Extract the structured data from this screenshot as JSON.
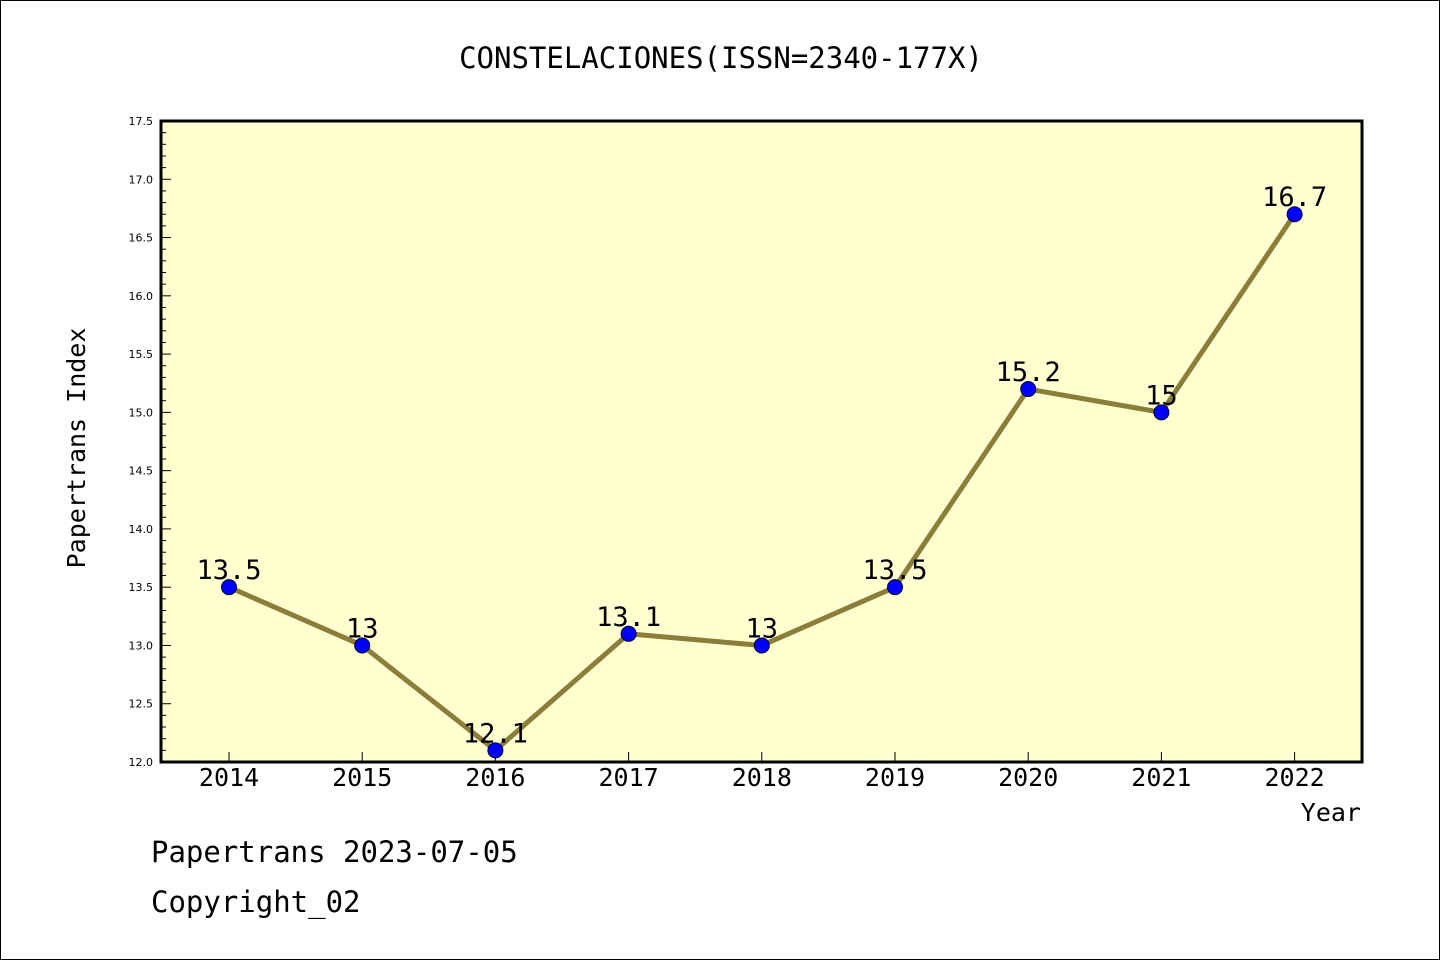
{
  "chart_data": {
    "type": "line",
    "title": "CONSTELACIONES(ISSN=2340-177X)",
    "xlabel": "Year",
    "ylabel": "Papertrans Index",
    "categories": [
      "2014",
      "2015",
      "2016",
      "2017",
      "2018",
      "2019",
      "2020",
      "2021",
      "2022"
    ],
    "series": [
      {
        "values": [
          13.5,
          13,
          12.1,
          13.1,
          13,
          13.5,
          15.2,
          15,
          16.7
        ],
        "labels": [
          "13.5",
          "13",
          "12.1",
          "13.1",
          "13",
          "13.5",
          "15.2",
          "15",
          "16.7"
        ]
      }
    ],
    "ylim": [
      12.0,
      17.5
    ],
    "yticks": [
      "12.0",
      "12.5",
      "13.0",
      "13.5",
      "14.0",
      "14.5",
      "15.0",
      "15.5",
      "16.0",
      "16.5",
      "17.0",
      "17.5"
    ],
    "grid": false,
    "colors": {
      "plot_background": "#ffffd0",
      "line": "#8b7d3a",
      "marker": "#0000ff"
    }
  },
  "footer": {
    "line1": "Papertrans 2023-07-05",
    "line2": "Copyright_02"
  }
}
